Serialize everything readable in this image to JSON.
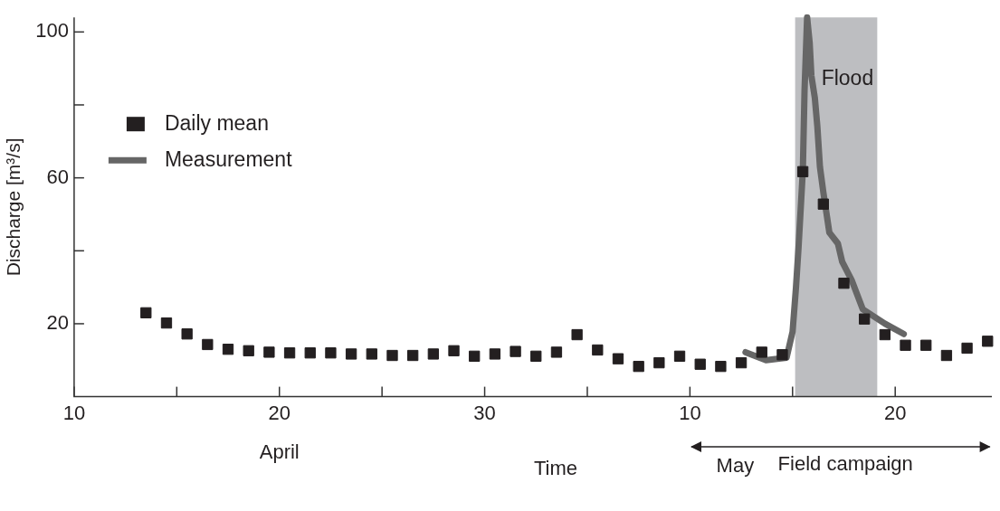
{
  "chart_data": {
    "type": "line",
    "xlabel": "Time",
    "ylabel": "Discharge [m³/s]",
    "legend": "top left",
    "xlim": [
      "--04-10",
      "--05-24T17:00"
    ],
    "ylim": [
      0,
      104
    ],
    "xticks": [
      {
        "value": "--04-10",
        "label": "10"
      },
      {
        "value": "--04-15",
        "label": null
      },
      {
        "value": "--04-20",
        "label": "20"
      },
      {
        "value": "--04-25",
        "label": null
      },
      {
        "value": "--04-30",
        "label": "30"
      },
      {
        "value": "--05-05",
        "label": null
      },
      {
        "value": "--05-10",
        "label": "10"
      },
      {
        "value": "--05-15",
        "label": null
      },
      {
        "value": "--05-20",
        "label": "20"
      }
    ],
    "yticks": [
      20,
      {
        "value": 40,
        "label": null
      },
      60,
      {
        "value": 80,
        "label": null
      },
      100
    ],
    "bands": [
      {
        "axis": "x",
        "from": "--05-15T03:00",
        "to": "--05-19T03:00",
        "label": "Flood",
        "color": "#bdbec1"
      }
    ],
    "annotations": [
      "April",
      "May",
      "Field campaign"
    ],
    "series": [
      {
        "name": "Daily mean",
        "type": "scatter",
        "marker": "square",
        "color": "#231f20",
        "x": [
          "--04-13T12:00",
          "--04-14T12:00",
          "--04-15T12:00",
          "--04-16T12:00",
          "--04-17T12:00",
          "--04-18T12:00",
          "--04-19T12:00",
          "--04-20T12:00",
          "--04-21T12:00",
          "--04-22T12:00",
          "--04-23T12:00",
          "--04-24T12:00",
          "--04-25T12:00",
          "--04-26T12:00",
          "--04-27T12:00",
          "--04-28T12:00",
          "--04-29T12:00",
          "--04-30T12:00",
          "--05-01T12:00",
          "--05-02T12:00",
          "--05-03T12:00",
          "--05-04T12:00",
          "--05-05T12:00",
          "--05-06T12:00",
          "--05-07T12:00",
          "--05-08T12:00",
          "--05-09T12:00",
          "--05-10T12:00",
          "--05-11T12:00",
          "--05-12T12:00",
          "--05-13T12:00",
          "--05-14T12:00",
          "--05-15T12:00",
          "--05-16T12:00",
          "--05-17T12:00",
          "--05-18T12:00",
          "--05-19T12:00",
          "--05-20T12:00",
          "--05-21T12:00",
          "--05-22T12:00",
          "--05-23T12:00",
          "--05-24T12:00"
        ],
        "values": [
          23,
          20.2,
          17.2,
          14.3,
          13,
          12.6,
          12.2,
          12,
          12,
          12,
          11.7,
          11.7,
          11.3,
          11.3,
          11.7,
          12.6,
          11.1,
          11.7,
          12.4,
          11.1,
          12.2,
          17,
          12.8,
          10.4,
          8.3,
          9.3,
          11.1,
          8.9,
          8.3,
          9.3,
          12.2,
          11.5,
          61.7,
          52.8,
          31.1,
          21.3,
          17,
          14.1,
          14.1,
          11.3,
          13.3,
          15.2
        ]
      },
      {
        "name": "Measurement",
        "type": "line",
        "marker": "none",
        "color": "#666666",
        "x": [
          "--05-12T17:00",
          "--05-13T17:00",
          "--05-14T17:00",
          "--05-15T00:00",
          "--05-15T04:00",
          "--05-15T07:00",
          "--05-15T12:00",
          "--05-15T14:00",
          "--05-15T17:00",
          "--05-15T20:00",
          "--05-15T22:00",
          "--05-16T02:00",
          "--05-16T05:00",
          "--05-16T08:00",
          "--05-16T12:00",
          "--05-16T19:00",
          "--05-17T05:00",
          "--05-17T10:00",
          "--05-17T21:00",
          "--05-18T10:00",
          "--05-19T12:00",
          "--05-20T10:00"
        ],
        "values": [
          12.2,
          10,
          10.7,
          17.8,
          30,
          41,
          62,
          84,
          104,
          97,
          88,
          82,
          74,
          63,
          56,
          45,
          42,
          37,
          32,
          24,
          20,
          17.2
        ]
      }
    ]
  }
}
